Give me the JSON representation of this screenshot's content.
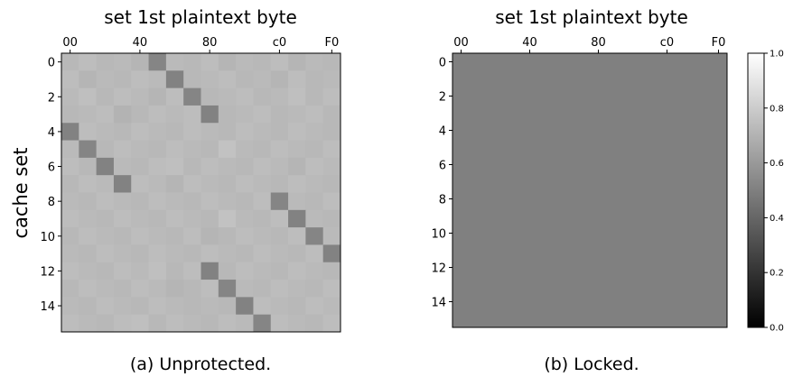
{
  "chart_data": [
    {
      "type": "heatmap",
      "title": "set 1st plaintext byte",
      "ylabel": "cache set",
      "xlabel": "",
      "x_ticks": [
        "00",
        "40",
        "80",
        "c0",
        "F0"
      ],
      "y_ticks": [
        "0",
        "2",
        "4",
        "6",
        "8",
        "10",
        "12",
        "14"
      ],
      "rows": 16,
      "cols": 16,
      "colormap": "gray",
      "values": [
        [
          0.72,
          0.74,
          0.72,
          0.73,
          0.71,
          0.52,
          0.73,
          0.72,
          0.74,
          0.71,
          0.73,
          0.72,
          0.74,
          0.71,
          0.73,
          0.72
        ],
        [
          0.74,
          0.71,
          0.73,
          0.72,
          0.74,
          0.73,
          0.51,
          0.72,
          0.73,
          0.74,
          0.72,
          0.73,
          0.71,
          0.74,
          0.72,
          0.73
        ],
        [
          0.73,
          0.75,
          0.72,
          0.74,
          0.73,
          0.71,
          0.74,
          0.52,
          0.72,
          0.73,
          0.74,
          0.72,
          0.73,
          0.75,
          0.72,
          0.74
        ],
        [
          0.72,
          0.73,
          0.74,
          0.7,
          0.72,
          0.74,
          0.73,
          0.74,
          0.51,
          0.72,
          0.73,
          0.74,
          0.72,
          0.73,
          0.74,
          0.72
        ],
        [
          0.51,
          0.74,
          0.73,
          0.72,
          0.74,
          0.73,
          0.72,
          0.74,
          0.73,
          0.72,
          0.74,
          0.73,
          0.72,
          0.74,
          0.73,
          0.72
        ],
        [
          0.73,
          0.52,
          0.72,
          0.74,
          0.73,
          0.72,
          0.74,
          0.73,
          0.72,
          0.76,
          0.73,
          0.72,
          0.74,
          0.73,
          0.72,
          0.74
        ],
        [
          0.74,
          0.72,
          0.51,
          0.73,
          0.72,
          0.74,
          0.75,
          0.72,
          0.74,
          0.73,
          0.72,
          0.74,
          0.73,
          0.71,
          0.74,
          0.73
        ],
        [
          0.72,
          0.74,
          0.73,
          0.51,
          0.74,
          0.73,
          0.71,
          0.74,
          0.73,
          0.72,
          0.74,
          0.73,
          0.72,
          0.74,
          0.73,
          0.72
        ],
        [
          0.73,
          0.72,
          0.74,
          0.73,
          0.72,
          0.74,
          0.73,
          0.72,
          0.74,
          0.73,
          0.72,
          0.74,
          0.52,
          0.73,
          0.72,
          0.74
        ],
        [
          0.74,
          0.73,
          0.72,
          0.74,
          0.73,
          0.72,
          0.74,
          0.73,
          0.72,
          0.76,
          0.73,
          0.72,
          0.74,
          0.51,
          0.73,
          0.72
        ],
        [
          0.72,
          0.74,
          0.73,
          0.72,
          0.74,
          0.73,
          0.72,
          0.74,
          0.71,
          0.72,
          0.74,
          0.73,
          0.72,
          0.74,
          0.52,
          0.73
        ],
        [
          0.73,
          0.72,
          0.74,
          0.73,
          0.72,
          0.74,
          0.73,
          0.72,
          0.74,
          0.73,
          0.72,
          0.74,
          0.73,
          0.72,
          0.74,
          0.51
        ],
        [
          0.74,
          0.73,
          0.72,
          0.74,
          0.73,
          0.75,
          0.72,
          0.74,
          0.51,
          0.72,
          0.74,
          0.73,
          0.72,
          0.74,
          0.73,
          0.72
        ],
        [
          0.72,
          0.74,
          0.73,
          0.72,
          0.74,
          0.73,
          0.71,
          0.72,
          0.74,
          0.52,
          0.73,
          0.72,
          0.74,
          0.73,
          0.72,
          0.74
        ],
        [
          0.73,
          0.72,
          0.74,
          0.73,
          0.72,
          0.74,
          0.73,
          0.72,
          0.73,
          0.72,
          0.51,
          0.74,
          0.73,
          0.72,
          0.74,
          0.73
        ],
        [
          0.74,
          0.73,
          0.72,
          0.74,
          0.75,
          0.72,
          0.74,
          0.73,
          0.72,
          0.74,
          0.73,
          0.52,
          0.74,
          0.73,
          0.72,
          0.74
        ]
      ],
      "caption": "(a) Unprotected."
    },
    {
      "type": "heatmap",
      "title": "set 1st plaintext byte",
      "ylabel": "",
      "xlabel": "",
      "x_ticks": [
        "00",
        "40",
        "80",
        "c0",
        "F0"
      ],
      "y_ticks": [
        "0",
        "2",
        "4",
        "6",
        "8",
        "10",
        "12",
        "14"
      ],
      "rows": 16,
      "cols": 16,
      "colormap": "gray",
      "uniform_value": 0.5,
      "colorbar": {
        "min": 0.0,
        "max": 1.0,
        "ticks": [
          "0.0",
          "0.2",
          "0.4",
          "0.6",
          "0.8",
          "1.0"
        ]
      },
      "caption": "(b) Locked."
    }
  ]
}
